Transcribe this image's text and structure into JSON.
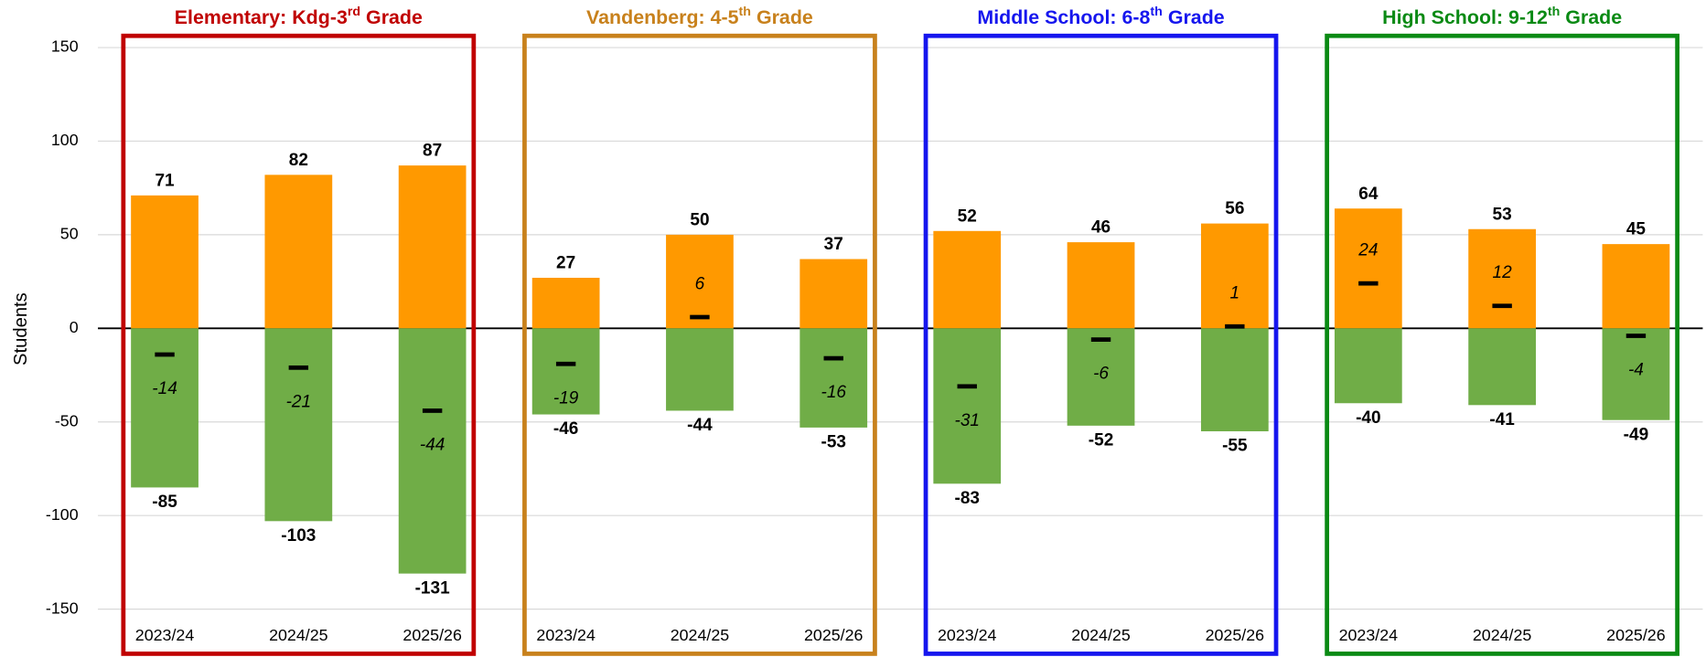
{
  "chart_data": {
    "type": "bar",
    "y_label": "Students",
    "ylim": [
      -175,
      158
    ],
    "yticks": [
      -150,
      -100,
      -50,
      0,
      50,
      100,
      150
    ],
    "grid": true,
    "groups": [
      {
        "title": {
          "main": "Elementary: Kdg-3",
          "sup": "rd",
          "rest": " Grade"
        },
        "color": "#c00000",
        "categories": [
          "2023/24",
          "2024/25",
          "2025/26"
        ],
        "series": [
          {
            "color": "#ff9900",
            "values": [
              71,
              82,
              87
            ]
          },
          {
            "color": "#70ad47",
            "values": [
              -85,
              -103,
              -131
            ]
          },
          {
            "color": "#000000",
            "values": [
              -14,
              -21,
              -44
            ]
          }
        ]
      },
      {
        "title": {
          "main": "Vandenberg: 4-5",
          "sup": "th",
          "rest": " Grade"
        },
        "color": "#c8811c",
        "categories": [
          "2023/24",
          "2024/25",
          "2025/26"
        ],
        "series": [
          {
            "color": "#ff9900",
            "values": [
              27,
              50,
              37
            ]
          },
          {
            "color": "#70ad47",
            "values": [
              -46,
              -44,
              -53
            ]
          },
          {
            "color": "#000000",
            "values": [
              -19,
              6,
              -16
            ]
          }
        ]
      },
      {
        "title": {
          "main": "Middle School: 6-8",
          "sup": "th",
          "rest": " Grade"
        },
        "color": "#1616ee",
        "categories": [
          "2023/24",
          "2024/25",
          "2025/26"
        ],
        "series": [
          {
            "color": "#ff9900",
            "values": [
              52,
              46,
              56
            ]
          },
          {
            "color": "#70ad47",
            "values": [
              -83,
              -52,
              -55
            ]
          },
          {
            "color": "#000000",
            "values": [
              -31,
              -6,
              1
            ]
          }
        ]
      },
      {
        "title": {
          "main": "High School: 9-12",
          "sup": "th",
          "rest": " Grade"
        },
        "color": "#0a8a14",
        "categories": [
          "2023/24",
          "2024/25",
          "2025/26"
        ],
        "series": [
          {
            "color": "#ff9900",
            "values": [
              64,
              53,
              45
            ]
          },
          {
            "color": "#70ad47",
            "values": [
              -40,
              -41,
              -49
            ]
          },
          {
            "color": "#000000",
            "values": [
              24,
              12,
              -4
            ]
          }
        ]
      }
    ]
  }
}
